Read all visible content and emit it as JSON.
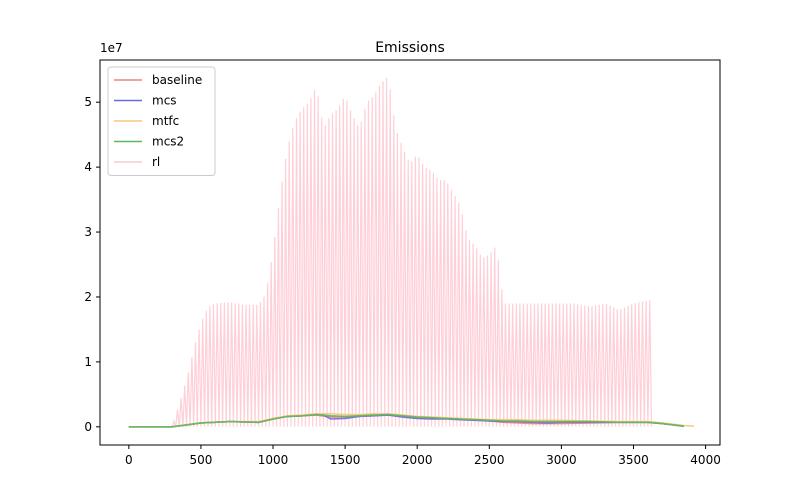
{
  "chart_data": {
    "type": "line",
    "title": "Emissions",
    "xlabel": "",
    "ylabel": "",
    "y_offset_label": "1e7",
    "xlim": [
      -200,
      4100
    ],
    "ylim": [
      -2800000,
      56500000
    ],
    "x_ticks": [
      0,
      500,
      1000,
      1500,
      2000,
      2500,
      3000,
      3500,
      4000
    ],
    "y_ticks": [
      0,
      10000000,
      20000000,
      30000000,
      40000000,
      50000000
    ],
    "y_tick_labels": [
      "0",
      "1",
      "2",
      "3",
      "4",
      "5"
    ],
    "grid": false,
    "legend_position": "top-left",
    "series": [
      {
        "name": "baseline",
        "color": "#f4827d",
        "x": [
          0,
          300,
          400,
          500,
          700,
          900,
          1000,
          1100,
          1200,
          1300,
          1400,
          1500,
          1600,
          1700,
          1800,
          1900,
          2000,
          2100,
          2200,
          2300,
          2400,
          2500,
          2600,
          2700,
          2800,
          2900,
          3000,
          3200,
          3400,
          3600,
          3700,
          3850
        ],
        "y": [
          0,
          0,
          300000,
          600000,
          800000,
          700000,
          1200000,
          1600000,
          1700000,
          1800000,
          1500000,
          1500000,
          1700000,
          1800000,
          1800000,
          1600000,
          1400000,
          1300000,
          1300000,
          1200000,
          1100000,
          900000,
          700000,
          600000,
          500000,
          500000,
          500000,
          600000,
          700000,
          700000,
          500000,
          100000
        ]
      },
      {
        "name": "mcs",
        "color": "#6b6bdf",
        "x": [
          0,
          300,
          400,
          500,
          700,
          900,
          1000,
          1100,
          1200,
          1300,
          1350,
          1400,
          1500,
          1600,
          1700,
          1800,
          1900,
          2000,
          2100,
          2200,
          2300,
          2400,
          2500,
          2600,
          2700,
          2800,
          2900,
          3000,
          3200,
          3400,
          3600,
          3700,
          3850
        ],
        "y": [
          0,
          0,
          300000,
          600000,
          800000,
          700000,
          1200000,
          1600000,
          1700000,
          1900000,
          1800000,
          1200000,
          1300000,
          1600000,
          1700000,
          1800000,
          1500000,
          1300000,
          1200000,
          1200000,
          1100000,
          1000000,
          900000,
          800000,
          800000,
          700000,
          600000,
          700000,
          700000,
          700000,
          700000,
          500000,
          100000
        ]
      },
      {
        "name": "mtfc",
        "color": "#f9c57a",
        "x": [
          0,
          300,
          400,
          500,
          700,
          900,
          1000,
          1100,
          1200,
          1300,
          1400,
          1500,
          1600,
          1700,
          1800,
          1900,
          2000,
          2100,
          2200,
          2300,
          2400,
          2500,
          2600,
          2700,
          2800,
          2900,
          3000,
          3200,
          3400,
          3600,
          3700,
          3850,
          3920
        ],
        "y": [
          0,
          0,
          300000,
          600000,
          800000,
          800000,
          1300000,
          1700000,
          1800000,
          2000000,
          2000000,
          1900000,
          1900000,
          2000000,
          2000000,
          1800000,
          1600000,
          1500000,
          1400000,
          1300000,
          1200000,
          1100000,
          1100000,
          1100000,
          1000000,
          1000000,
          1000000,
          900000,
          800000,
          800000,
          600000,
          200000,
          100000
        ]
      },
      {
        "name": "mcs2",
        "color": "#5cb85c",
        "x": [
          0,
          300,
          400,
          500,
          700,
          900,
          1000,
          1100,
          1200,
          1300,
          1400,
          1500,
          1600,
          1700,
          1800,
          1900,
          2000,
          2100,
          2200,
          2300,
          2400,
          2500,
          2600,
          2700,
          2800,
          2900,
          3000,
          3200,
          3400,
          3600,
          3700,
          3850
        ],
        "y": [
          0,
          0,
          300000,
          600000,
          800000,
          700000,
          1200000,
          1600000,
          1700000,
          1900000,
          1700000,
          1600000,
          1700000,
          1800000,
          1900000,
          1700000,
          1500000,
          1400000,
          1300000,
          1200000,
          1100000,
          1000000,
          900000,
          900000,
          800000,
          800000,
          800000,
          800000,
          700000,
          700000,
          500000,
          100000
        ]
      },
      {
        "name": "rl",
        "color": "#ffc7d0",
        "type": "oscillating",
        "x_end": 3610,
        "envelope_x": [
          300,
          350,
          390,
          420,
          450,
          500,
          550,
          600,
          700,
          800,
          900,
          950,
          1000,
          1050,
          1100,
          1150,
          1200,
          1250,
          1300,
          1350,
          1400,
          1450,
          1500,
          1550,
          1600,
          1650,
          1700,
          1750,
          1800,
          1850,
          1900,
          1950,
          2000,
          2050,
          2100,
          2150,
          2200,
          2250,
          2300,
          2350,
          2400,
          2450,
          2500,
          2550,
          2600,
          2700,
          2800,
          2900,
          3000,
          3100,
          3200,
          3300,
          3400,
          3500,
          3600
        ],
        "envelope_y": [
          0,
          3500000,
          6500000,
          9000000,
          12000000,
          16000000,
          18500000,
          19000000,
          19200000,
          18800000,
          18800000,
          20500000,
          27000000,
          36000000,
          43000000,
          47000000,
          49000000,
          50000000,
          52500000,
          46000000,
          48000000,
          49000000,
          51000000,
          48000000,
          46000000,
          50000000,
          51000000,
          53000000,
          54000000,
          46000000,
          43000000,
          40500000,
          42000000,
          40000000,
          39500000,
          38000000,
          38000000,
          36000000,
          34000000,
          29000000,
          28000000,
          26000000,
          26500000,
          28000000,
          19000000,
          19000000,
          19000000,
          19000000,
          19000000,
          19000000,
          18500000,
          19000000,
          18000000,
          19000000,
          19500000
        ],
        "period": 25
      }
    ]
  }
}
